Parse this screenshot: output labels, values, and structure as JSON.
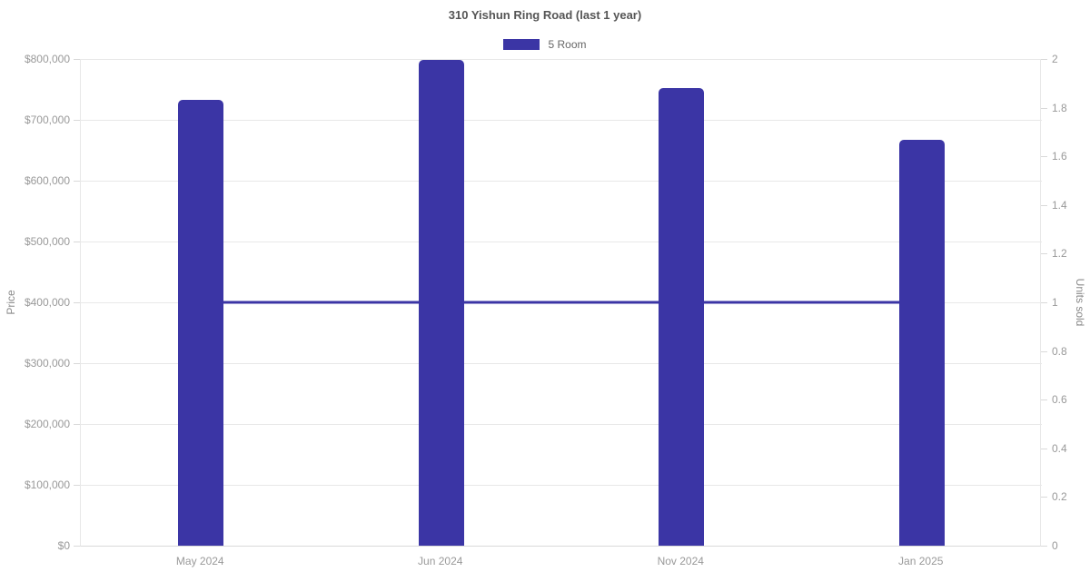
{
  "chart_data": {
    "type": "bar",
    "title": "310 Yishun Ring Road (last 1 year)",
    "categories": [
      "May 2024",
      "Jun 2024",
      "Nov 2024",
      "Jan 2025"
    ],
    "series": [
      {
        "name": "5 Room",
        "kind": "bar",
        "axis": "left",
        "values": [
          733000,
          798000,
          752000,
          667000
        ]
      },
      {
        "name": "5 Room",
        "kind": "line",
        "axis": "right",
        "values": [
          1,
          1,
          1,
          1
        ]
      }
    ],
    "left_axis": {
      "label": "Price",
      "min": 0,
      "max": 800000,
      "step": 100000,
      "tick_labels": [
        "$0",
        "$100,000",
        "$200,000",
        "$300,000",
        "$400,000",
        "$500,000",
        "$600,000",
        "$700,000",
        "$800,000"
      ]
    },
    "right_axis": {
      "label": "Units sold",
      "min": 0,
      "max": 2,
      "step": 0.2,
      "tick_labels": [
        "0",
        "0.2",
        "0.4",
        "0.6",
        "0.8",
        "1",
        "1.2",
        "1.4",
        "1.6",
        "1.8",
        "2"
      ]
    },
    "legend": {
      "position": "top",
      "items": [
        {
          "label": "5 Room",
          "color": "#3b35a5"
        }
      ]
    },
    "grid": "horizontal-only",
    "colors": {
      "bar": "#3b35a5",
      "line": "#3b35a5",
      "gridline": "#e8e8e8",
      "axis_line": "#d9d9d9",
      "tick_text": "#999999",
      "axis_title_text": "#8a8a8a",
      "title_text": "#555555"
    }
  }
}
